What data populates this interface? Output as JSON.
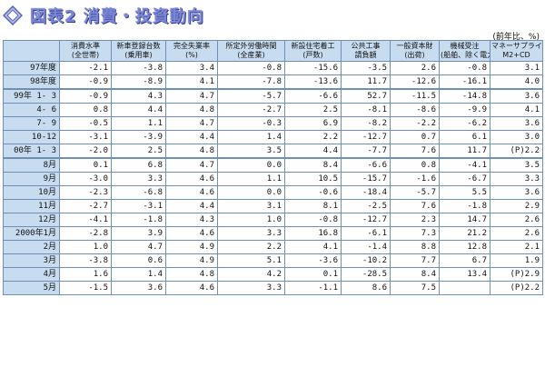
{
  "title": "図表2 消費・投資動向",
  "unit_note": "(前年比、%)",
  "columns": [
    {
      "top": "消費水準",
      "bottom": "(全世帯)"
    },
    {
      "top": "新車登録台数",
      "bottom": "(乗用車)"
    },
    {
      "top": "完全失業率",
      "bottom": "(%)"
    },
    {
      "top": "所定外労働時間",
      "bottom": "(全産業)"
    },
    {
      "top": "新設住宅着工",
      "bottom": "(戸数)"
    },
    {
      "top": "公共工事",
      "bottom": "請負額"
    },
    {
      "top": "一般資本財",
      "bottom": "(出荷)"
    },
    {
      "top": "機械受注",
      "bottom": "(船舶、除く電力)"
    },
    {
      "top": "マネーサプライ",
      "bottom": "M2+CD"
    }
  ],
  "rows": [
    {
      "label": "97年度",
      "v": [
        "-2.1",
        "-3.8",
        "3.4",
        "-0.8",
        "-15.6",
        "-3.5",
        "2.6",
        "-0.8",
        "3.1"
      ]
    },
    {
      "label": "98年度",
      "v": [
        "-0.9",
        "-8.9",
        "4.1",
        "-7.8",
        "-13.6",
        "11.7",
        "-12.6",
        "-16.1",
        "4.0"
      ]
    },
    {
      "label": "99年 1- 3",
      "v": [
        "-0.9",
        "4.3",
        "4.7",
        "-5.7",
        "-6.6",
        "52.7",
        "-11.5",
        "-14.8",
        "3.6"
      ]
    },
    {
      "label": "4- 6",
      "v": [
        "0.8",
        "4.4",
        "4.8",
        "-2.7",
        "2.5",
        "-8.1",
        "-8.6",
        "-9.9",
        "4.1"
      ]
    },
    {
      "label": "7- 9",
      "v": [
        "-0.5",
        "1.1",
        "4.7",
        "-0.3",
        "6.9",
        "-8.2",
        "-2.2",
        "-6.2",
        "3.6"
      ]
    },
    {
      "label": "10-12",
      "v": [
        "-3.1",
        "-3.9",
        "4.4",
        "1.4",
        "2.2",
        "-12.7",
        "0.7",
        "6.1",
        "3.0"
      ]
    },
    {
      "label": "00年 1- 3",
      "v": [
        "-2.0",
        "2.5",
        "4.8",
        "3.5",
        "4.4",
        "-7.7",
        "7.6",
        "11.7",
        "(P)2.2"
      ]
    },
    {
      "label": "8月",
      "v": [
        "0.1",
        "6.8",
        "4.7",
        "0.0",
        "8.4",
        "-6.6",
        "0.8",
        "-4.1",
        "3.5"
      ]
    },
    {
      "label": "9月",
      "v": [
        "-3.0",
        "3.3",
        "4.6",
        "1.1",
        "10.5",
        "-15.7",
        "-1.6",
        "-6.7",
        "3.3"
      ]
    },
    {
      "label": "10月",
      "v": [
        "-2.3",
        "-6.8",
        "4.6",
        "0.0",
        "-0.6",
        "-18.4",
        "-5.7",
        "5.5",
        "3.6"
      ]
    },
    {
      "label": "11月",
      "v": [
        "-2.7",
        "-3.1",
        "4.4",
        "3.1",
        "8.1",
        "-2.5",
        "7.6",
        "-1.8",
        "2.9"
      ]
    },
    {
      "label": "12月",
      "v": [
        "-4.1",
        "-1.8",
        "4.3",
        "1.0",
        "-0.8",
        "-12.7",
        "2.3",
        "14.7",
        "2.6"
      ]
    },
    {
      "label": "2000年1月",
      "v": [
        "-2.8",
        "3.9",
        "4.6",
        "3.3",
        "16.8",
        "-6.1",
        "7.3",
        "21.2",
        "2.6"
      ]
    },
    {
      "label": "2月",
      "v": [
        "1.0",
        "4.7",
        "4.9",
        "2.2",
        "4.1",
        "-1.4",
        "8.8",
        "12.8",
        "2.1"
      ]
    },
    {
      "label": "3月",
      "v": [
        "-3.8",
        "0.6",
        "4.9",
        "5.1",
        "-3.6",
        "-10.2",
        "7.7",
        "6.7",
        "1.9"
      ]
    },
    {
      "label": "4月",
      "v": [
        "1.6",
        "1.4",
        "4.8",
        "4.2",
        "0.1",
        "-28.5",
        "8.4",
        "13.4",
        "(P)2.9"
      ]
    },
    {
      "label": "5月",
      "v": [
        "-1.5",
        "3.6",
        "4.6",
        "3.3",
        "-1.1",
        "8.6",
        "7.5",
        "",
        "(P)2.2"
      ]
    }
  ],
  "colors": {
    "header_bg": "#c8dcf0",
    "border": "#6f8fb5",
    "title": "#7a86d6"
  },
  "icon": "diamond-logo-icon"
}
